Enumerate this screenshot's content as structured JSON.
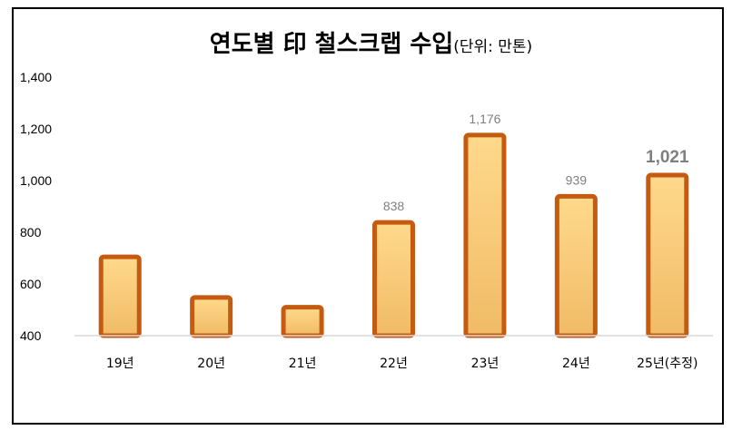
{
  "title": {
    "main": "연도별 印 철스크랩 수입",
    "sub": "(단위: 만톤)"
  },
  "colors": {
    "bar_fill_top": "#ffd98c",
    "bar_fill_bottom": "#f0bb66",
    "bar_stroke": "#c55a11",
    "axis": "#d9d9d9",
    "highlight_label": "#c55a11"
  },
  "chart_data": {
    "type": "bar",
    "title": "연도별 印 철스크랩 수입",
    "subtitle": "(단위: 만톤)",
    "categories": [
      "19년",
      "20년",
      "21년",
      "22년",
      "23년",
      "24년",
      "25년(추정)"
    ],
    "values": [
      705,
      548,
      510,
      838,
      1176,
      939,
      1021
    ],
    "data_labels": [
      "",
      "",
      "",
      "838",
      "1,176",
      "939",
      "1,021"
    ],
    "highlight_index": 6,
    "y_ticks": [
      "400",
      "600",
      "800",
      "1,000",
      "1,200",
      "1,400"
    ],
    "y_tick_values": [
      400,
      600,
      800,
      1000,
      1200,
      1400
    ],
    "ylim": [
      400,
      1400
    ],
    "grid": false,
    "legend": "none"
  }
}
